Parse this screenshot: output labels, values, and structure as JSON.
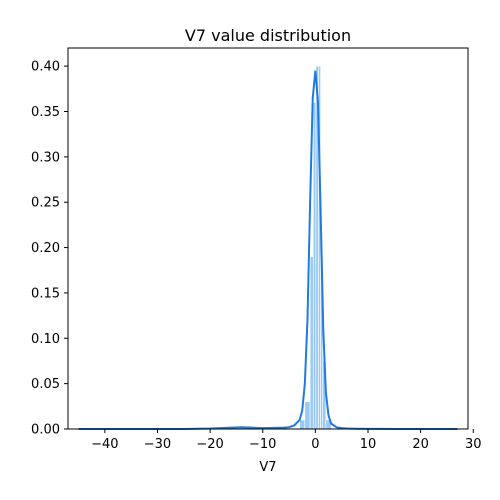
{
  "chart_data": {
    "type": "area",
    "title": "V7 value distribution",
    "xlabel": "V7",
    "ylabel": "",
    "xlim": [
      -47,
      29
    ],
    "ylim": [
      0,
      0.42
    ],
    "x_ticks": [
      -40,
      -30,
      -20,
      -10,
      0,
      10,
      20,
      30
    ],
    "y_ticks": [
      0.0,
      0.05,
      0.1,
      0.15,
      0.2,
      0.25,
      0.3,
      0.35,
      0.4
    ],
    "grid": false,
    "colors": {
      "bar": "#99c9f5",
      "line": "#1f7be0"
    },
    "histogram": {
      "bin_edges": [
        -3.0,
        -2.0,
        -1.0,
        -0.4,
        0.1,
        0.6,
        1.0,
        1.4,
        2.0,
        3.0
      ],
      "density": [
        0.01,
        0.03,
        0.19,
        0.36,
        0.4,
        0.4,
        0.19,
        0.074,
        0.01
      ]
    },
    "kde": {
      "x": [
        -45,
        -40,
        -35,
        -30,
        -25,
        -20,
        -16,
        -14,
        -12,
        -10,
        -8,
        -6,
        -5,
        -4,
        -3,
        -2.5,
        -2,
        -1.5,
        -1,
        -0.5,
        0,
        0.5,
        1,
        1.5,
        2,
        2.5,
        3,
        4,
        5,
        6,
        8,
        10,
        12,
        15,
        20,
        25,
        27
      ],
      "y": [
        0.0,
        0.0,
        0.0,
        0.0,
        0.0,
        0.0005,
        0.0015,
        0.002,
        0.0015,
        0.001,
        0.0012,
        0.0015,
        0.002,
        0.004,
        0.01,
        0.02,
        0.05,
        0.12,
        0.25,
        0.365,
        0.395,
        0.36,
        0.24,
        0.11,
        0.04,
        0.015,
        0.006,
        0.002,
        0.001,
        0.0006,
        0.0003,
        0.0002,
        0.0001,
        0.0,
        0.0,
        0.0,
        0.0
      ]
    }
  }
}
